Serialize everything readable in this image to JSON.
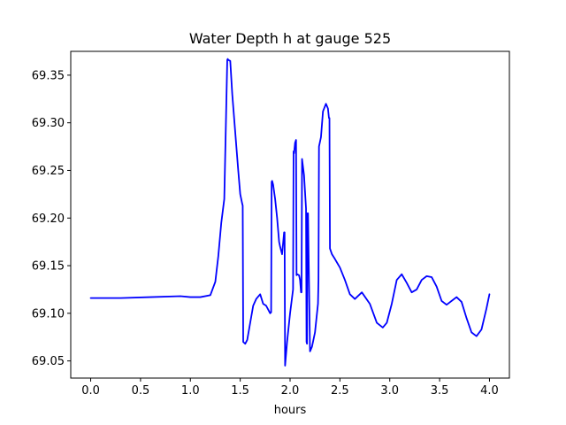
{
  "chart_data": {
    "type": "line",
    "title": "Water Depth h at gauge 525",
    "xlabel": "hours",
    "ylabel": "",
    "xlim": [
      -0.2,
      4.2
    ],
    "ylim": [
      69.032,
      69.375
    ],
    "xticks": [
      0.0,
      0.5,
      1.0,
      1.5,
      2.0,
      2.5,
      3.0,
      3.5,
      4.0
    ],
    "xtick_labels": [
      "0.0",
      "0.5",
      "1.0",
      "1.5",
      "2.0",
      "2.5",
      "3.0",
      "3.5",
      "4.0"
    ],
    "yticks": [
      69.05,
      69.1,
      69.15,
      69.2,
      69.25,
      69.3,
      69.35
    ],
    "ytick_labels": [
      "69.05",
      "69.10",
      "69.15",
      "69.20",
      "69.25",
      "69.30",
      "69.35"
    ],
    "grid": false,
    "legend": "none",
    "series": [
      {
        "color": "#0000ff",
        "x": [
          0.0,
          0.3,
          0.6,
          0.9,
          1.0,
          1.1,
          1.2,
          1.25,
          1.28,
          1.31,
          1.34,
          1.37,
          1.375,
          1.38,
          1.4,
          1.42,
          1.45,
          1.48,
          1.5,
          1.52,
          1.525,
          1.53,
          1.55,
          1.57,
          1.6,
          1.63,
          1.66,
          1.7,
          1.73,
          1.76,
          1.8,
          1.81,
          1.815,
          1.82,
          1.83,
          1.85,
          1.87,
          1.89,
          1.9,
          1.92,
          1.94,
          1.945,
          1.95,
          1.97,
          2.0,
          2.03,
          2.035,
          2.04,
          2.05,
          2.06,
          2.065,
          2.07,
          2.09,
          2.1,
          2.11,
          2.115,
          2.12,
          2.14,
          2.16,
          2.165,
          2.17,
          2.175,
          2.18,
          2.2,
          2.22,
          2.25,
          2.28,
          2.285,
          2.29,
          2.31,
          2.33,
          2.36,
          2.38,
          2.39,
          2.395,
          2.4,
          2.42,
          2.45,
          2.5,
          2.55,
          2.6,
          2.65,
          2.72,
          2.8,
          2.87,
          2.93,
          2.97,
          3.02,
          3.07,
          3.12,
          3.17,
          3.22,
          3.27,
          3.32,
          3.37,
          3.42,
          3.47,
          3.52,
          3.57,
          3.62,
          3.67,
          3.72,
          3.77,
          3.82,
          3.87,
          3.92,
          3.97,
          4.0
        ],
        "y": [
          69.116,
          69.116,
          69.117,
          69.118,
          69.117,
          69.117,
          69.119,
          69.133,
          69.16,
          69.195,
          69.22,
          69.366,
          69.367,
          69.366,
          69.365,
          69.33,
          69.29,
          69.25,
          69.225,
          69.215,
          69.213,
          69.07,
          69.068,
          69.072,
          69.09,
          69.108,
          69.115,
          69.12,
          69.11,
          69.108,
          69.1,
          69.101,
          69.238,
          69.239,
          69.235,
          69.22,
          69.2,
          69.175,
          69.17,
          69.162,
          69.185,
          69.185,
          69.045,
          69.07,
          69.1,
          69.125,
          69.27,
          69.268,
          69.279,
          69.282,
          69.14,
          69.141,
          69.14,
          69.135,
          69.122,
          69.122,
          69.262,
          69.245,
          69.21,
          69.07,
          69.068,
          69.205,
          69.205,
          69.06,
          69.065,
          69.08,
          69.11,
          69.135,
          69.275,
          69.285,
          69.312,
          69.32,
          69.315,
          69.305,
          69.305,
          69.168,
          69.162,
          69.157,
          69.148,
          69.135,
          69.12,
          69.115,
          69.122,
          69.11,
          69.09,
          69.085,
          69.09,
          69.11,
          69.135,
          69.141,
          69.132,
          69.122,
          69.125,
          69.135,
          69.139,
          69.138,
          69.128,
          69.113,
          69.109,
          69.113,
          69.117,
          69.112,
          69.095,
          69.08,
          69.076,
          69.083,
          69.105,
          69.12
        ]
      }
    ]
  }
}
